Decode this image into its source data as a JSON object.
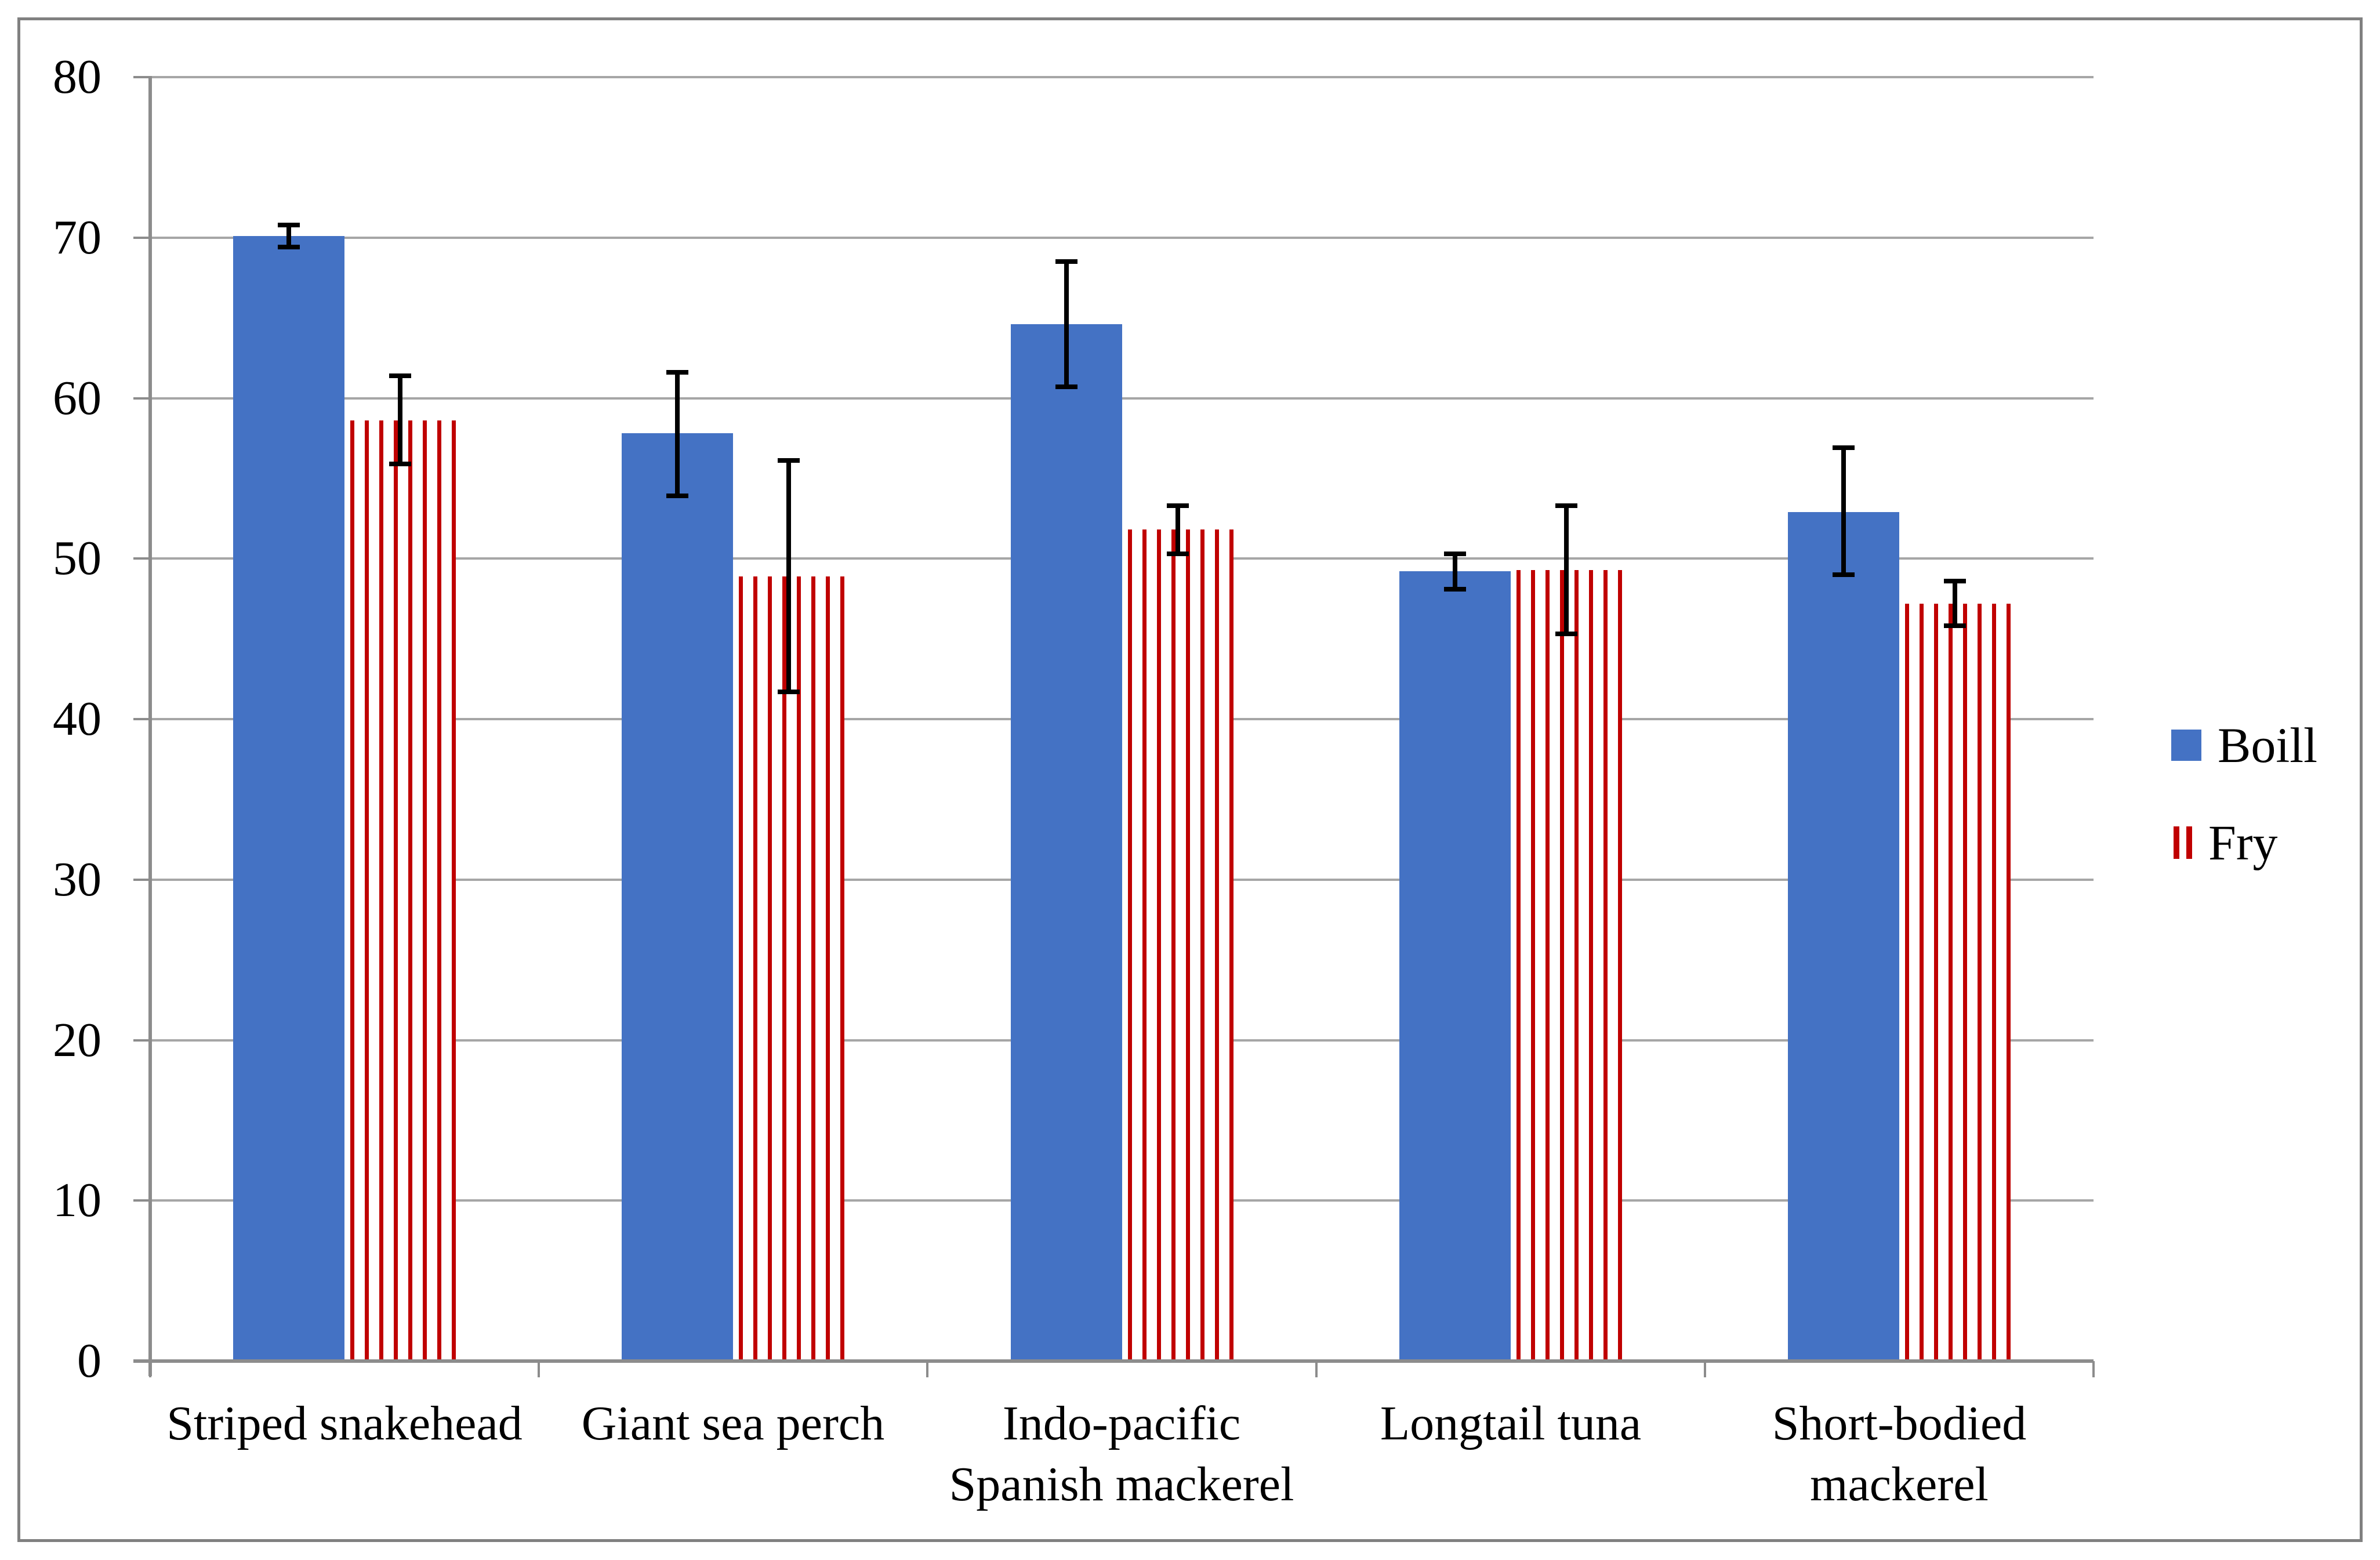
{
  "chart_data": {
    "type": "bar",
    "title": "",
    "xlabel": "",
    "ylabel": "",
    "categories": [
      "Striped snakehead",
      "Giant sea perch",
      "Indo-pacific Spanish mackerel",
      "Longtail tuna",
      "Short-bodied mackerel"
    ],
    "category_label_lines": [
      [
        "Striped snakehead"
      ],
      [
        "Giant sea perch"
      ],
      [
        "Indo-pacific",
        "Spanish mackerel"
      ],
      [
        "Longtail tuna"
      ],
      [
        "Short-bodied",
        "mackerel"
      ]
    ],
    "series": [
      {
        "name": "Boill",
        "style": "solid",
        "color": "#4472C4",
        "values": [
          70.1,
          57.8,
          64.6,
          49.2,
          52.9
        ],
        "error_low": [
          69.4,
          53.9,
          60.7,
          48.1,
          49.0
        ],
        "error_high": [
          70.8,
          61.6,
          68.5,
          50.3,
          56.9
        ]
      },
      {
        "name": "Fry",
        "style": "striped",
        "color": "#C00000",
        "values": [
          58.6,
          48.9,
          51.8,
          49.3,
          47.2
        ],
        "error_low": [
          55.9,
          41.7,
          50.3,
          45.3,
          45.8
        ],
        "error_high": [
          61.4,
          56.1,
          53.3,
          53.3,
          48.6
        ]
      }
    ],
    "ylim": [
      0,
      80
    ],
    "yticks": [
      0,
      10,
      20,
      30,
      40,
      50,
      60,
      70,
      80
    ],
    "grid": true,
    "legend_position": "right",
    "error_bars": true
  },
  "colors": {
    "background": "#ffffff",
    "figure_border": "#808080",
    "gridline": "#A6A6A6",
    "axis": "#8C8C8C",
    "error_bar": "#000000",
    "text": "#000000",
    "boill_fill": "#4472C4",
    "fry_stripe": "#C00000"
  }
}
